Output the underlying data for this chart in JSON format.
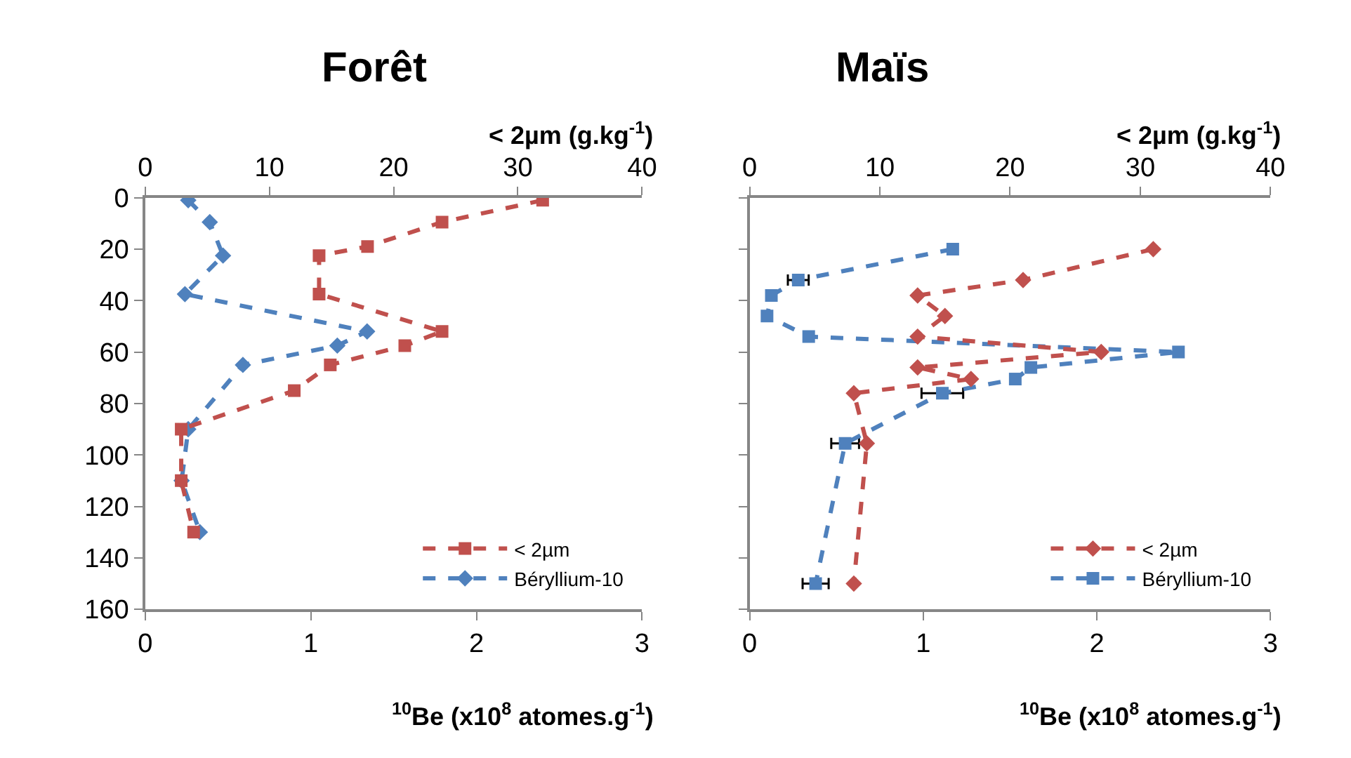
{
  "chart_data": [
    {
      "type": "line",
      "title": "Forêt",
      "xlabel": "$^{10}$Be (x10$^{8}$ atomes.g$^{-1}$)",
      "x2label": "< 2µm (g.kg$^{-1}$)",
      "xlim": [
        0,
        3
      ],
      "xticks": [
        0,
        1,
        2,
        3
      ],
      "x2lim": [
        0,
        40
      ],
      "x2ticks": [
        0,
        10,
        20,
        30,
        40
      ],
      "ylim": [
        160,
        0
      ],
      "yticks": [
        0,
        20,
        40,
        60,
        80,
        100,
        120,
        140,
        160
      ],
      "legend": "bottom right",
      "line_style": "dashed",
      "series": [
        {
          "name": "< 2µm",
          "color": "#c0504d",
          "axis": "x2",
          "marker": "square",
          "x": [
            32,
            23.9,
            17.9,
            14,
            14,
            23.9,
            20.9,
            14.9,
            12,
            2.9,
            2.9,
            3.9
          ],
          "values": [
            1,
            9.5,
            19,
            22.5,
            37.5,
            52,
            57.5,
            65,
            75,
            90,
            110,
            130
          ]
        },
        {
          "name": "Béryllium-10",
          "color": "#4f81bd",
          "marker": "diamond",
          "x": [
            0.26,
            0.39,
            0.47,
            0.24,
            1.34,
            1.16,
            0.59,
            0.26,
            0.22,
            0.33
          ],
          "values": [
            1,
            9.5,
            22.5,
            37.5,
            52,
            57.5,
            65,
            90,
            110,
            130
          ]
        }
      ]
    },
    {
      "type": "line",
      "title": "Maïs",
      "xlabel": "$^{10}$Be (x10$^{8}$ atomes.g$^{-1}$)",
      "x2label": "< 2µm (g.kg$^{-1}$)",
      "xlim": [
        0,
        3
      ],
      "xticks": [
        0,
        1,
        2,
        3
      ],
      "x2lim": [
        0,
        40
      ],
      "x2ticks": [
        0,
        10,
        20,
        30,
        40
      ],
      "ylim": [
        160,
        0
      ],
      "yticks": [
        0,
        20,
        40,
        60,
        80,
        100,
        120,
        140,
        160
      ],
      "tick_labels": "x",
      "legend": "bottom right",
      "line_style": "dashed",
      "series": [
        {
          "name": "< 2µm",
          "color": "#c0504d",
          "axis": "x2",
          "marker": "diamond",
          "x": [
            31,
            21,
            12.9,
            15,
            12.9,
            27,
            12.9,
            17,
            8,
            9,
            8
          ],
          "values": [
            20,
            32,
            38,
            46,
            54,
            60,
            66,
            70.5,
            76,
            95.5,
            150
          ]
        },
        {
          "name": "Béryllium-10",
          "color": "#4f81bd",
          "marker": "square",
          "x": [
            1.17,
            0.28,
            0.125,
            0.1,
            0.34,
            2.47,
            1.62,
            1.53,
            1.11,
            0.55,
            0.38
          ],
          "values": [
            20,
            32,
            38,
            46,
            54,
            60,
            66,
            70.5,
            76,
            95.5,
            150
          ],
          "xerrors": [
            null,
            0.06,
            null,
            null,
            null,
            null,
            null,
            null,
            0.12,
            0.08,
            0.075
          ]
        }
      ]
    }
  ]
}
